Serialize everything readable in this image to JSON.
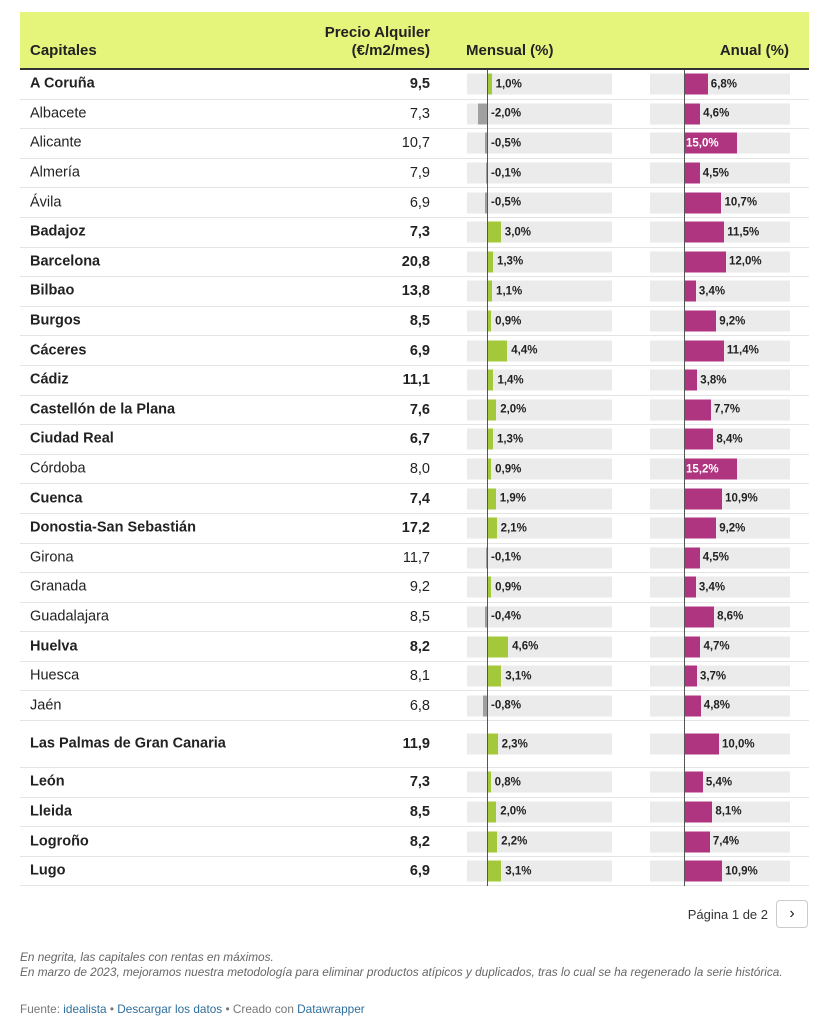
{
  "chart_data": {
    "type": "table",
    "columns": {
      "city": "Capitales",
      "price": "Precio Alquiler\n(€/m2/mes)",
      "monthly": "Mensual (%)",
      "annual": "Anual (%)"
    },
    "monthly_range": [
      -2.5,
      6.5
    ],
    "annual_range": [
      0,
      20
    ],
    "rows": [
      {
        "city": "A Coruña",
        "price": "9,5",
        "monthly": 1.0,
        "monthly_label": "1,0%",
        "annual": 6.8,
        "annual_label": "6,8%",
        "bold": true
      },
      {
        "city": "Albacete",
        "price": "7,3",
        "monthly": -2.0,
        "monthly_label": "-2,0%",
        "annual": 4.6,
        "annual_label": "4,6%",
        "bold": false
      },
      {
        "city": "Alicante",
        "price": "10,7",
        "monthly": -0.5,
        "monthly_label": "-0,5%",
        "annual": 15.0,
        "annual_label": "15,0%",
        "bold": false
      },
      {
        "city": "Almería",
        "price": "7,9",
        "monthly": -0.1,
        "monthly_label": "-0,1%",
        "annual": 4.5,
        "annual_label": "4,5%",
        "bold": false
      },
      {
        "city": "Ávila",
        "price": "6,9",
        "monthly": -0.5,
        "monthly_label": "-0,5%",
        "annual": 10.7,
        "annual_label": "10,7%",
        "bold": false
      },
      {
        "city": "Badajoz",
        "price": "7,3",
        "monthly": 3.0,
        "monthly_label": "3,0%",
        "annual": 11.5,
        "annual_label": "11,5%",
        "bold": true
      },
      {
        "city": "Barcelona",
        "price": "20,8",
        "monthly": 1.3,
        "monthly_label": "1,3%",
        "annual": 12.0,
        "annual_label": "12,0%",
        "bold": true
      },
      {
        "city": "Bilbao",
        "price": "13,8",
        "monthly": 1.1,
        "monthly_label": "1,1%",
        "annual": 3.4,
        "annual_label": "3,4%",
        "bold": true
      },
      {
        "city": "Burgos",
        "price": "8,5",
        "monthly": 0.9,
        "monthly_label": "0,9%",
        "annual": 9.2,
        "annual_label": "9,2%",
        "bold": true
      },
      {
        "city": "Cáceres",
        "price": "6,9",
        "monthly": 4.4,
        "monthly_label": "4,4%",
        "annual": 11.4,
        "annual_label": "11,4%",
        "bold": true
      },
      {
        "city": "Cádiz",
        "price": "11,1",
        "monthly": 1.4,
        "monthly_label": "1,4%",
        "annual": 3.8,
        "annual_label": "3,8%",
        "bold": true
      },
      {
        "city": "Castellón de la Plana",
        "price": "7,6",
        "monthly": 2.0,
        "monthly_label": "2,0%",
        "annual": 7.7,
        "annual_label": "7,7%",
        "bold": true
      },
      {
        "city": "Ciudad Real",
        "price": "6,7",
        "monthly": 1.3,
        "monthly_label": "1,3%",
        "annual": 8.4,
        "annual_label": "8,4%",
        "bold": true
      },
      {
        "city": "Córdoba",
        "price": "8,0",
        "monthly": 0.9,
        "monthly_label": "0,9%",
        "annual": 15.2,
        "annual_label": "15,2%",
        "bold": false
      },
      {
        "city": "Cuenca",
        "price": "7,4",
        "monthly": 1.9,
        "monthly_label": "1,9%",
        "annual": 10.9,
        "annual_label": "10,9%",
        "bold": true
      },
      {
        "city": "Donostia-San Sebastián",
        "price": "17,2",
        "monthly": 2.1,
        "monthly_label": "2,1%",
        "annual": 9.2,
        "annual_label": "9,2%",
        "bold": true
      },
      {
        "city": "Girona",
        "price": "11,7",
        "monthly": -0.1,
        "monthly_label": "-0,1%",
        "annual": 4.5,
        "annual_label": "4,5%",
        "bold": false
      },
      {
        "city": "Granada",
        "price": "9,2",
        "monthly": 0.9,
        "monthly_label": "0,9%",
        "annual": 3.4,
        "annual_label": "3,4%",
        "bold": false
      },
      {
        "city": "Guadalajara",
        "price": "8,5",
        "monthly": -0.4,
        "monthly_label": "-0,4%",
        "annual": 8.6,
        "annual_label": "8,6%",
        "bold": false
      },
      {
        "city": "Huelva",
        "price": "8,2",
        "monthly": 4.6,
        "monthly_label": "4,6%",
        "annual": 4.7,
        "annual_label": "4,7%",
        "bold": true
      },
      {
        "city": "Huesca",
        "price": "8,1",
        "monthly": 3.1,
        "monthly_label": "3,1%",
        "annual": 3.7,
        "annual_label": "3,7%",
        "bold": false
      },
      {
        "city": "Jaén",
        "price": "6,8",
        "monthly": -0.8,
        "monthly_label": "-0,8%",
        "annual": 4.8,
        "annual_label": "4,8%",
        "bold": false
      },
      {
        "city": "Las Palmas de Gran Canaria",
        "price": "11,9",
        "monthly": 2.3,
        "monthly_label": "2,3%",
        "annual": 10.0,
        "annual_label": "10,0%",
        "bold": true
      },
      {
        "city": "León",
        "price": "7,3",
        "monthly": 0.8,
        "monthly_label": "0,8%",
        "annual": 5.4,
        "annual_label": "5,4%",
        "bold": true
      },
      {
        "city": "Lleida",
        "price": "8,5",
        "monthly": 2.0,
        "monthly_label": "2,0%",
        "annual": 8.1,
        "annual_label": "8,1%",
        "bold": true
      },
      {
        "city": "Logroño",
        "price": "8,2",
        "monthly": 2.2,
        "monthly_label": "2,2%",
        "annual": 7.4,
        "annual_label": "7,4%",
        "bold": true
      },
      {
        "city": "Lugo",
        "price": "6,9",
        "monthly": 3.1,
        "monthly_label": "3,1%",
        "annual": 10.9,
        "annual_label": "10,9%",
        "bold": true
      }
    ]
  },
  "colors": {
    "header_bg": "#e5f47b",
    "monthly_pos": "#a3c93a",
    "monthly_neg": "#a0a0a0",
    "annual": "#b03580",
    "track": "#ebebeb"
  },
  "pagination": {
    "label": "Página 1 de 2",
    "next_icon": "chevron-right-icon"
  },
  "notes": {
    "line1": "En negrita, las capitales con rentas en máximos.",
    "line2": "En marzo de 2023, mejoramos nuestra metodología para eliminar productos atípicos y duplicados, tras lo cual se ha regenerado la serie histórica."
  },
  "source": {
    "prefix": "Fuente: ",
    "source_link": "idealista",
    "sep1": " • ",
    "download_link": "Descargar los datos",
    "sep2": " • Creado con ",
    "created_link": "Datawrapper"
  }
}
